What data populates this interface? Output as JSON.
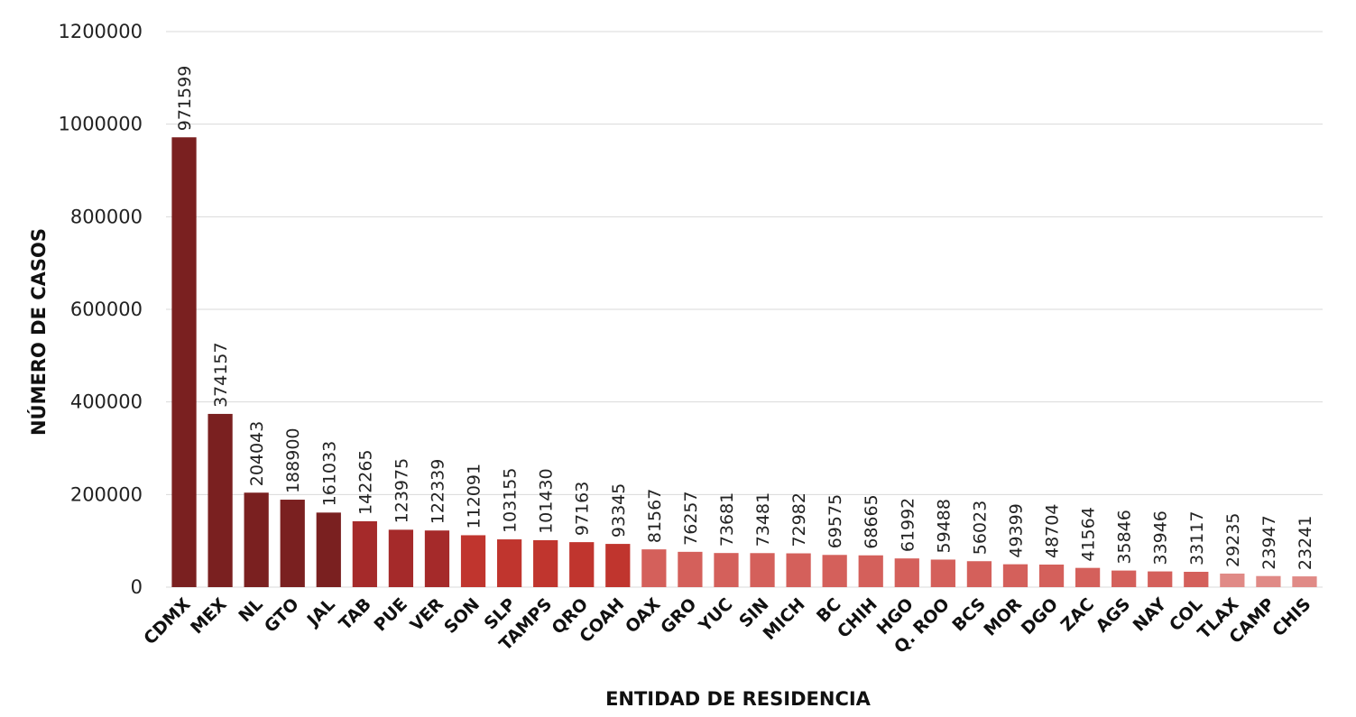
{
  "chart_data": {
    "type": "bar",
    "xlabel": "ENTIDAD DE RESIDENCIA",
    "ylabel": "NÚMERO DE CASOS",
    "ylim": [
      0,
      1200000
    ],
    "yticks": [
      "0",
      "200000",
      "400000",
      "600000",
      "800000",
      "1000000",
      "1200000"
    ],
    "ytick_values": [
      0,
      200000,
      400000,
      600000,
      800000,
      1000000,
      1200000
    ],
    "grid": true,
    "legend": "none",
    "categories": [
      "CDMX",
      "MEX",
      "NL",
      "GTO",
      "JAL",
      "TAB",
      "PUE",
      "VER",
      "SON",
      "SLP",
      "TAMPS",
      "QRO",
      "COAH",
      "OAX",
      "GRO",
      "YUC",
      "SIN",
      "MICH",
      "BC",
      "CHIH",
      "HGO",
      "Q. ROO",
      "BCS",
      "MOR",
      "DGO",
      "ZAC",
      "AGS",
      "NAY",
      "COL",
      "TLAX",
      "CAMP",
      "CHIS"
    ],
    "values": [
      971599,
      374157,
      204043,
      188900,
      161033,
      142265,
      123975,
      122339,
      112091,
      103155,
      101430,
      97163,
      93345,
      81567,
      76257,
      73681,
      73481,
      72982,
      69575,
      68665,
      61992,
      59488,
      56023,
      49399,
      48704,
      41564,
      35846,
      33946,
      33117,
      29235,
      23947,
      23241
    ],
    "value_labels": [
      "971599",
      "374157",
      "204043",
      "188900",
      "161033",
      "142265",
      "123975",
      "122339",
      "112091",
      "103155",
      "101430",
      "97163",
      "93345",
      "81567",
      "76257",
      "73681",
      "73481",
      "72982",
      "69575",
      "68665",
      "61992",
      "59488",
      "56023",
      "49399",
      "48704",
      "41564",
      "35846",
      "33946",
      "33117",
      "29235",
      "23947",
      "23241"
    ],
    "colors": {
      "dark": "#7a2020",
      "medium": "#a52a2a",
      "red": "#c0352e",
      "light": "#d4605b",
      "lightest": "#e08a86",
      "grid": "#d9d9d9"
    },
    "color_groups": [
      "dark",
      "dark",
      "dark",
      "dark",
      "dark",
      "medium",
      "medium",
      "medium",
      "red",
      "red",
      "red",
      "red",
      "red",
      "light",
      "light",
      "light",
      "light",
      "light",
      "light",
      "light",
      "light",
      "light",
      "light",
      "light",
      "light",
      "light",
      "light",
      "light",
      "light",
      "lightest",
      "lightest",
      "lightest"
    ]
  }
}
